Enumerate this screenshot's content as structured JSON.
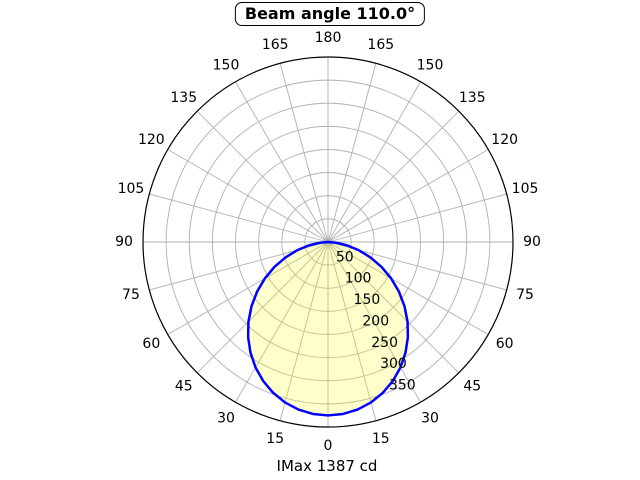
{
  "chart_data": {
    "type": "line",
    "subtype": "polar-photometric",
    "title": "Beam angle 110.0°",
    "footer": "IMax 1387 cd",
    "beam_angle_deg": 110.0,
    "imax_cd": 1387,
    "angle_axis": {
      "step_deg": 15,
      "zero_position": "bottom",
      "mirrored_labels": true,
      "labels": [
        0,
        15,
        30,
        45,
        60,
        75,
        90,
        105,
        120,
        135,
        150,
        165,
        180
      ]
    },
    "radial_axis": {
      "ticks": [
        50,
        100,
        150,
        200,
        250,
        300,
        350
      ],
      "max": 400,
      "label_angle_deg": 22.5,
      "grid": true
    },
    "series": [
      {
        "name": "luminous-intensity",
        "symmetric": true,
        "angles_deg": [
          0,
          5,
          10,
          15,
          20,
          25,
          30,
          35,
          40,
          45,
          50,
          55,
          60,
          65,
          70,
          75,
          80,
          85,
          90
        ],
        "values": [
          375,
          373.2,
          367.9,
          359.1,
          346.9,
          331.6,
          313.3,
          292.2,
          268.7,
          243.2,
          215.8,
          187.2,
          157.7,
          127.8,
          98.1,
          69.2,
          42.0,
          17.8,
          0
        ]
      }
    ],
    "colors": {
      "curve": "#0000ff",
      "fill": "rgba(255,255,0,0.2)",
      "grid": "#b0b0b0",
      "spine": "#000000",
      "text": "#000000",
      "background": "#ffffff",
      "title_border": "#000000"
    }
  }
}
